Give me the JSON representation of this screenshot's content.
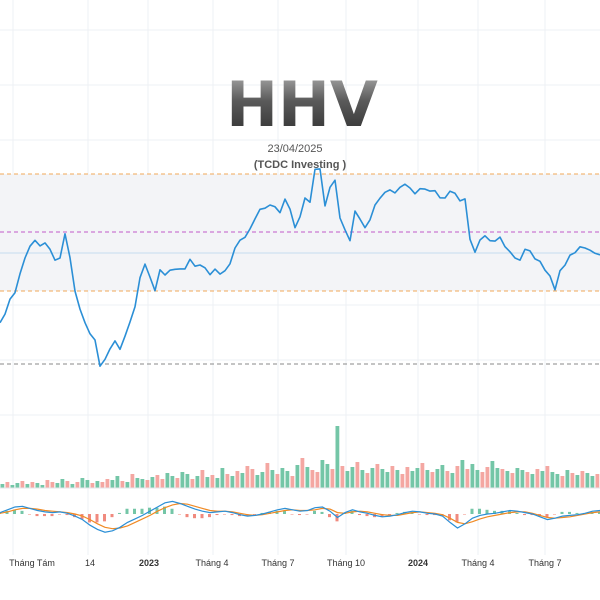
{
  "chart_data": {
    "type": "line",
    "title": "HHV",
    "date": "23/04/2025",
    "source": "(TCDC Investing )",
    "x_tick_labels": [
      "Tháng Tám",
      "14",
      "2023",
      "Tháng 4",
      "Tháng 7",
      "Tháng 10",
      "2024",
      "Tháng 4",
      "Tháng 7"
    ],
    "bold_tick_labels": [
      "2023",
      "2024"
    ],
    "price_series": {
      "name": "",
      "color": "#2b8fd6",
      "x": [
        0,
        5,
        10,
        15,
        20,
        25,
        30,
        35,
        40,
        45,
        50,
        55,
        60,
        65,
        70,
        75,
        80,
        85,
        90,
        95,
        100,
        105,
        110,
        115,
        120,
        125,
        130,
        135,
        140,
        145,
        150,
        155,
        160,
        165,
        170,
        175,
        180,
        185,
        190,
        195,
        200,
        205,
        210,
        215,
        220,
        225,
        230,
        235,
        240,
        245,
        250,
        255,
        260,
        265,
        270,
        275,
        280,
        285,
        290,
        295,
        300,
        305,
        310,
        315,
        320,
        325,
        330,
        335,
        340,
        345,
        350,
        355,
        360,
        365,
        370,
        375,
        380,
        385,
        390,
        395,
        400,
        405,
        410,
        415,
        420,
        425,
        430,
        435,
        440,
        445,
        450,
        455,
        460,
        465,
        470,
        475,
        480,
        485,
        490,
        495,
        500,
        505,
        510,
        515,
        520,
        525,
        530,
        535,
        540,
        545,
        550,
        555,
        560,
        565,
        570,
        575,
        580,
        585,
        590,
        595,
        600
      ],
      "y": [
        320,
        315,
        300,
        290,
        272,
        258,
        248,
        243,
        245,
        242,
        252,
        262,
        258,
        232,
        255,
        292,
        310,
        320,
        332,
        340,
        368,
        362,
        348,
        340,
        352,
        338,
        322,
        305,
        275,
        265,
        278,
        288,
        268,
        275,
        272,
        272,
        268,
        268,
        262,
        268,
        265,
        266,
        272,
        270,
        275,
        268,
        262,
        248,
        242,
        240,
        228,
        218,
        212,
        210,
        205,
        205,
        210,
        200,
        210,
        225,
        215,
        198,
        204,
        172,
        168,
        205,
        190,
        182,
        218,
        228,
        238,
        212,
        220,
        225,
        218,
        205,
        200,
        195,
        189,
        192,
        190,
        186,
        188,
        192,
        186,
        190,
        192,
        188,
        196,
        198,
        193,
        196,
        200,
        198,
        242,
        254,
        240,
        234,
        238,
        242,
        238,
        244,
        250,
        258,
        262,
        252,
        250,
        258,
        264,
        272,
        276,
        288,
        268,
        266,
        256,
        250,
        245,
        248,
        252,
        256,
        254
      ]
    },
    "reference_lines": [
      {
        "level": 174,
        "color": "#f2a85a",
        "style": "dashed"
      },
      {
        "level": 232,
        "color": "#c05ac9",
        "style": "dashed"
      },
      {
        "level": 253,
        "color": "#c5dcef",
        "style": "solid"
      },
      {
        "level": 291,
        "color": "#f2a85a",
        "style": "dashed"
      },
      {
        "level": 364,
        "color": "#8a8a8a",
        "style": "dashed"
      }
    ],
    "band": {
      "from": 174,
      "to": 291,
      "color": "#f3f4f7"
    },
    "volume": {
      "up_color": "#74c6a7",
      "down_color": "#f4a7a2",
      "values": [
        4,
        6,
        3,
        5,
        7,
        4,
        6,
        5,
        3,
        8,
        6,
        5,
        9,
        7,
        4,
        6,
        10,
        8,
        5,
        7,
        6,
        9,
        8,
        12,
        7,
        6,
        14,
        10,
        9,
        8,
        11,
        13,
        9,
        15,
        12,
        10,
        16,
        14,
        9,
        12,
        18,
        11,
        13,
        10,
        20,
        14,
        12,
        17,
        15,
        22,
        19,
        13,
        16,
        25,
        18,
        14,
        20,
        17,
        12,
        23,
        30,
        21,
        18,
        16,
        28,
        24,
        19,
        62,
        22,
        17,
        21,
        26,
        18,
        15,
        20,
        24,
        19,
        16,
        22,
        18,
        14,
        21,
        17,
        20,
        25,
        18,
        16,
        19,
        23,
        17,
        15,
        22,
        28,
        19,
        24,
        18,
        16,
        21,
        27,
        20,
        19,
        17,
        15,
        20,
        18,
        16,
        14,
        19,
        17,
        22,
        16,
        14,
        12,
        18,
        15,
        13,
        17,
        15,
        12,
        14
      ],
      "up_pattern": [
        1,
        0,
        1,
        1,
        0,
        1,
        0,
        1,
        1,
        0,
        0,
        1,
        1,
        0,
        1,
        0,
        1,
        1,
        0,
        1,
        0,
        0,
        1,
        1,
        0,
        1,
        0,
        1,
        1,
        0,
        1,
        0,
        0,
        1,
        1,
        0,
        1,
        1,
        0,
        1,
        0,
        1,
        0,
        1,
        1,
        0,
        1,
        0,
        1,
        0,
        0,
        1,
        1,
        0,
        1,
        0,
        1,
        1,
        0,
        1,
        0,
        1,
        0,
        0,
        1,
        1,
        0,
        1,
        0,
        1,
        1,
        0,
        1,
        0,
        1,
        0,
        1,
        1,
        0,
        1,
        0,
        0,
        1,
        1,
        0,
        1,
        0,
        1,
        1,
        0,
        1,
        0,
        1,
        0,
        1,
        1,
        0,
        0,
        1,
        1,
        0,
        1,
        0,
        1,
        1,
        0,
        1,
        0,
        1,
        0,
        1,
        1,
        0,
        1,
        0,
        1,
        0,
        1,
        1,
        0
      ]
    },
    "macd": {
      "macd_color": "#2b8fd6",
      "signal_color": "#f08a24",
      "hist_up_color": "#74c6a7",
      "hist_down_color": "#f08a7e",
      "macd": [
        0.2,
        0.6,
        1.0,
        1.1,
        0.8,
        0.5,
        0.3,
        0.2,
        0.3,
        0.1,
        -0.3,
        -0.8,
        -1.6,
        -2.2,
        -2.6,
        -2.4,
        -1.9,
        -1.2,
        -0.7,
        -0.2,
        0.4,
        1.0,
        1.6,
        1.8,
        1.5,
        1.1,
        0.7,
        0.4,
        0.2,
        0.3,
        0.4,
        0.2,
        -0.1,
        -0.3,
        -0.2,
        0.0,
        0.3,
        0.6,
        0.8,
        0.6,
        0.4,
        0.5,
        0.9,
        1.0,
        0.4,
        -0.5,
        0.2,
        0.6,
        0.3,
        0.1,
        -0.2,
        -0.4,
        -0.3,
        -0.1,
        0.2,
        0.4,
        0.3,
        0.1,
        0.0,
        -0.3,
        -1.2,
        -2.0,
        -1.4,
        -0.6,
        -0.2,
        0.0,
        0.1,
        0.3,
        0.5,
        0.4,
        0.2,
        0.0,
        -0.4,
        -0.8,
        -0.6,
        -0.3,
        -0.2,
        -0.1,
        0.1,
        0.4,
        0.5
      ],
      "signal": [
        0.1,
        0.3,
        0.6,
        0.8,
        0.8,
        0.7,
        0.5,
        0.4,
        0.3,
        0.2,
        0.0,
        -0.3,
        -0.8,
        -1.4,
        -1.9,
        -2.1,
        -2.0,
        -1.7,
        -1.2,
        -0.7,
        -0.2,
        0.4,
        0.9,
        1.3,
        1.5,
        1.4,
        1.1,
        0.8,
        0.5,
        0.4,
        0.4,
        0.3,
        0.1,
        -0.1,
        -0.2,
        -0.1,
        0.1,
        0.3,
        0.5,
        0.6,
        0.5,
        0.5,
        0.6,
        0.8,
        0.7,
        0.2,
        0.1,
        0.3,
        0.4,
        0.3,
        0.1,
        -0.1,
        -0.2,
        -0.2,
        0.0,
        0.2,
        0.3,
        0.2,
        0.1,
        -0.1,
        -0.6,
        -1.2,
        -1.4,
        -1.1,
        -0.7,
        -0.4,
        -0.2,
        0.0,
        0.2,
        0.3,
        0.3,
        0.1,
        -0.2,
        -0.5,
        -0.6,
        -0.5,
        -0.4,
        -0.2,
        0.0,
        0.2,
        0.3
      ]
    }
  }
}
